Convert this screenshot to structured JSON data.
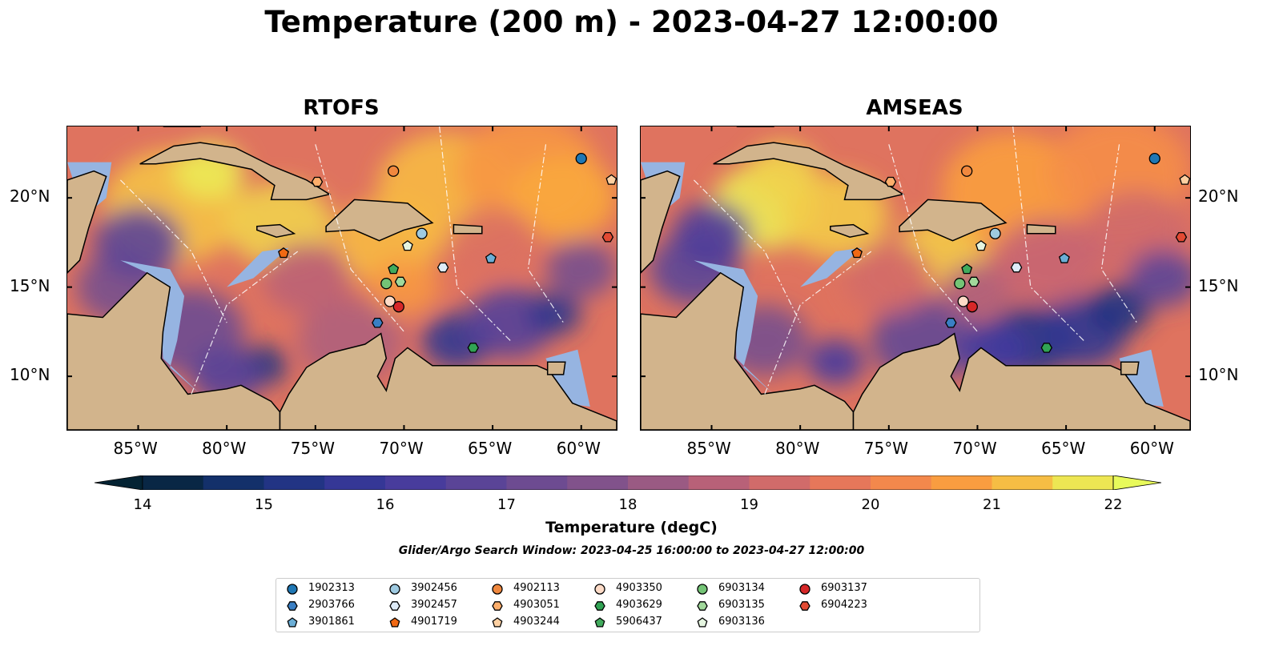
{
  "title": "Temperature (200 m) - 2023-04-27 12:00:00",
  "panels": [
    {
      "id": "rtofs",
      "title": "RTOFS"
    },
    {
      "id": "amseas",
      "title": "AMSEAS"
    }
  ],
  "lon_ticks": [
    "85°W",
    "80°W",
    "75°W",
    "70°W",
    "65°W",
    "60°W"
  ],
  "lat_ticks": [
    "20°N",
    "15°N",
    "10°N"
  ],
  "colorbar": {
    "title": "Temperature (degC)",
    "ticks": [
      "14",
      "15",
      "16",
      "17",
      "18",
      "19",
      "20",
      "21",
      "22"
    ],
    "vmin": 14,
    "vmax": 22,
    "step": 0.5,
    "colormap": "thermal",
    "extend": "both"
  },
  "search_window": "Glider/Argo Search Window: 2023-04-25 16:00:00 to 2023-04-27 12:00:00",
  "map_data": {
    "extent_lon": [
      -89,
      -58
    ],
    "extent_lat": [
      7,
      24
    ],
    "land_color": "#d2b48c",
    "shallow_color": "#96b4e1",
    "profiles": [
      {
        "id": "1902313",
        "lon": -60.0,
        "lat": 22.2,
        "marker": "circle",
        "color": "#1f77b4"
      },
      {
        "id": "6903137",
        "lon": -70.3,
        "lat": 13.9,
        "marker": "circle",
        "color": "#d62728"
      },
      {
        "id": "3902456",
        "lon": -69.0,
        "lat": 18.0,
        "marker": "circle",
        "color": "#9ecae1"
      },
      {
        "id": "4902113",
        "lon": -70.6,
        "lat": 21.5,
        "marker": "circle",
        "color": "#f0883e"
      },
      {
        "id": "4903350",
        "lon": -70.8,
        "lat": 14.2,
        "marker": "circle",
        "color": "#fddbc7"
      },
      {
        "id": "6903134",
        "lon": -71.0,
        "lat": 15.2,
        "marker": "circle",
        "color": "#74c476"
      },
      {
        "id": "2903766",
        "lon": -71.5,
        "lat": 13.0,
        "marker": "hexagon",
        "color": "#3a7fc4"
      },
      {
        "id": "3902457",
        "lon": -67.8,
        "lat": 16.1,
        "marker": "hexagon",
        "color": "#deebf7"
      },
      {
        "id": "4903051",
        "lon": -74.9,
        "lat": 20.9,
        "marker": "hexagon",
        "color": "#fdae6b"
      },
      {
        "id": "4903629",
        "lon": -66.1,
        "lat": 11.6,
        "marker": "hexagon",
        "color": "#31a354"
      },
      {
        "id": "6903135",
        "lon": -70.2,
        "lat": 15.3,
        "marker": "hexagon",
        "color": "#a1d99b"
      },
      {
        "id": "6904223",
        "lon": -58.5,
        "lat": 17.8,
        "marker": "hexagon",
        "color": "#e34a33"
      },
      {
        "id": "3901861",
        "lon": -65.1,
        "lat": 16.6,
        "marker": "pentagon",
        "color": "#6baed6"
      },
      {
        "id": "4901719",
        "lon": -76.8,
        "lat": 16.9,
        "marker": "pentagon",
        "color": "#f16913"
      },
      {
        "id": "4903244",
        "lon": -58.3,
        "lat": 21.0,
        "marker": "pentagon",
        "color": "#fdd0a2"
      },
      {
        "id": "5906437",
        "lon": -70.6,
        "lat": 16.0,
        "marker": "pentagon",
        "color": "#41ab5d"
      },
      {
        "id": "6903136",
        "lon": -69.8,
        "lat": 17.3,
        "marker": "pentagon",
        "color": "#e5f5e0"
      }
    ]
  },
  "legend": [
    {
      "label": "1902313",
      "marker": "circle",
      "color": "#1f77b4"
    },
    {
      "label": "2903766",
      "marker": "hexagon",
      "color": "#3a7fc4"
    },
    {
      "label": "3901861",
      "marker": "pentagon",
      "color": "#6baed6"
    },
    {
      "label": "3902456",
      "marker": "circle",
      "color": "#9ecae1"
    },
    {
      "label": "3902457",
      "marker": "hexagon",
      "color": "#deebf7"
    },
    {
      "label": "4901719",
      "marker": "pentagon",
      "color": "#f16913"
    },
    {
      "label": "4902113",
      "marker": "circle",
      "color": "#f0883e"
    },
    {
      "label": "4903051",
      "marker": "hexagon",
      "color": "#fdae6b"
    },
    {
      "label": "4903244",
      "marker": "pentagon",
      "color": "#fdd0a2"
    },
    {
      "label": "4903350",
      "marker": "circle",
      "color": "#fddbc7"
    },
    {
      "label": "4903629",
      "marker": "hexagon",
      "color": "#31a354"
    },
    {
      "label": "5906437",
      "marker": "pentagon",
      "color": "#41ab5d"
    },
    {
      "label": "6903134",
      "marker": "circle",
      "color": "#74c476"
    },
    {
      "label": "6903135",
      "marker": "hexagon",
      "color": "#a1d99b"
    },
    {
      "label": "6903136",
      "marker": "pentagon",
      "color": "#e5f5e0"
    },
    {
      "label": "6903137",
      "marker": "circle",
      "color": "#d62728"
    },
    {
      "label": "6904223",
      "marker": "hexagon",
      "color": "#e34a33"
    }
  ]
}
